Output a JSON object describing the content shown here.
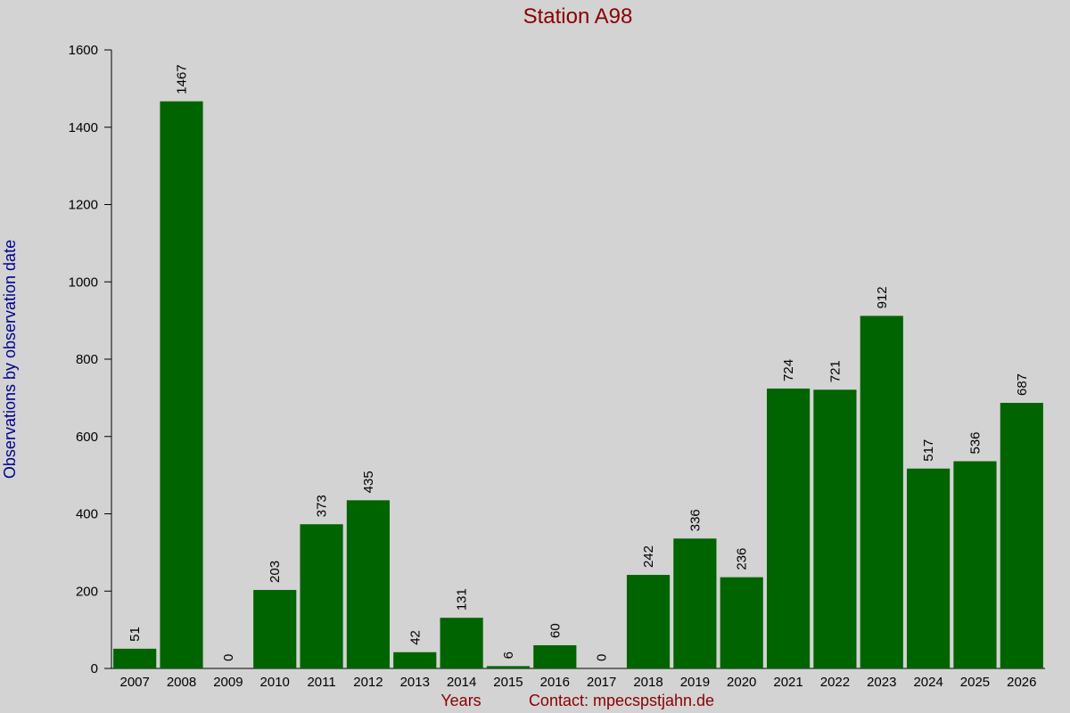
{
  "chart_data": {
    "type": "bar",
    "title": "Station A98",
    "x_label": "Years",
    "y_label": "Observations by observation date",
    "annotation": "Contact: mpecspstjahn.de",
    "categories": [
      "2007",
      "2008",
      "2009",
      "2010",
      "2011",
      "2012",
      "2013",
      "2014",
      "2015",
      "2016",
      "2017",
      "2018",
      "2019",
      "2020",
      "2021",
      "2022",
      "2023",
      "2024",
      "2025",
      "2026"
    ],
    "values": [
      51,
      1467,
      0,
      203,
      373,
      435,
      42,
      131,
      6,
      60,
      0,
      242,
      336,
      236,
      724,
      721,
      912,
      517,
      536,
      687
    ],
    "color": "#006400",
    "ylim": [
      0,
      1600
    ],
    "yticks": [
      0,
      200,
      400,
      600,
      800,
      1000,
      1200,
      1400,
      1600
    ],
    "data_labels": true
  }
}
